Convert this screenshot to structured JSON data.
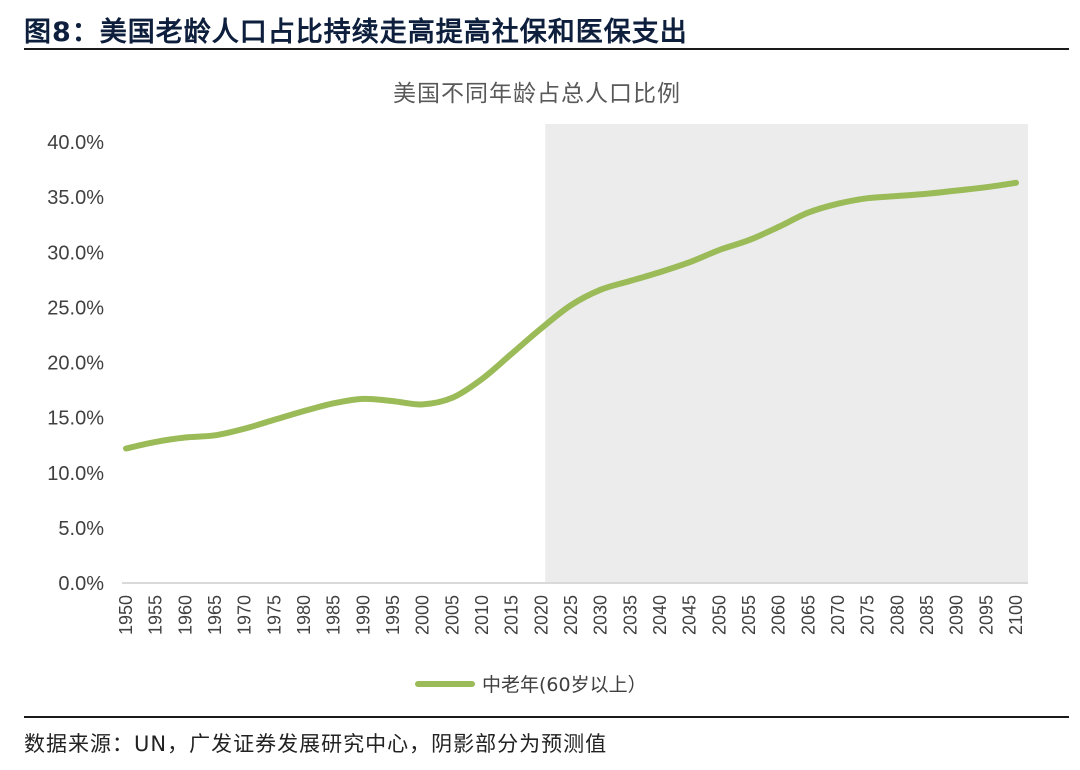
{
  "header": {
    "figure_title": "图8：美国老龄人口占比持续走高提高社保和医保支出"
  },
  "footer": {
    "source": "数据来源：UN，广发证券发展研究中心，阴影部分为预测值"
  },
  "colors": {
    "series": "#9bbb59",
    "shade": "#ececec",
    "axis": "#d9d9d9",
    "header_text": "#0d1f3c"
  },
  "chart_data": {
    "type": "line",
    "title": "美国不同年龄占总人口比例",
    "xlabel": "",
    "ylabel": "",
    "xlim": [
      1950,
      2100
    ],
    "ylim": [
      0,
      40
    ],
    "yticks": [
      "0.0%",
      "5.0%",
      "10.0%",
      "15.0%",
      "20.0%",
      "25.0%",
      "30.0%",
      "35.0%",
      "40.0%"
    ],
    "xticks": [
      "1950",
      "1955",
      "1960",
      "1965",
      "1970",
      "1975",
      "1980",
      "1985",
      "1990",
      "1995",
      "2000",
      "2005",
      "2010",
      "2015",
      "2020",
      "2025",
      "2030",
      "2035",
      "2040",
      "2045",
      "2050",
      "2055",
      "2060",
      "2065",
      "2070",
      "2075",
      "2080",
      "2085",
      "2090",
      "2095",
      "2100"
    ],
    "grid": false,
    "legend": "bottom",
    "shaded_region": {
      "from": 2021,
      "to": 2100,
      "meaning": "预测值"
    },
    "series": [
      {
        "name": "中老年(60岁以上）",
        "x": [
          1950,
          1955,
          1960,
          1965,
          1970,
          1975,
          1980,
          1985,
          1990,
          1995,
          2000,
          2005,
          2010,
          2015,
          2020,
          2025,
          2030,
          2035,
          2040,
          2045,
          2050,
          2055,
          2060,
          2065,
          2070,
          2075,
          2080,
          2085,
          2090,
          2095,
          2100
        ],
        "values": [
          12.2,
          12.8,
          13.2,
          13.4,
          14.0,
          14.8,
          15.6,
          16.3,
          16.7,
          16.5,
          16.2,
          16.8,
          18.5,
          20.8,
          23.1,
          25.2,
          26.6,
          27.4,
          28.2,
          29.1,
          30.2,
          31.1,
          32.3,
          33.6,
          34.4,
          34.9,
          35.1,
          35.3,
          35.6,
          35.9,
          36.3
        ]
      }
    ]
  }
}
